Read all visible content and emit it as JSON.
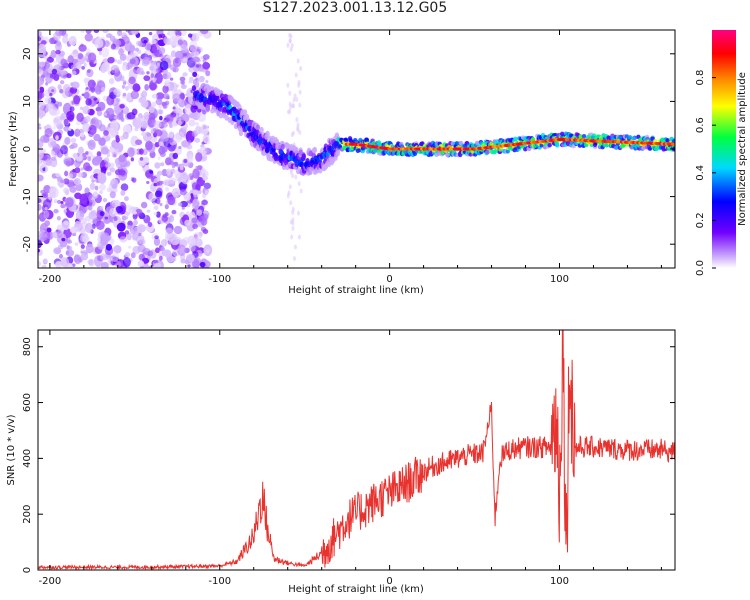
{
  "figure": {
    "title": "S127.2023.001.13.12.G05"
  },
  "chart_data": [
    {
      "type": "heatmap",
      "xlabel": "Height of straight line (km)",
      "ylabel": "Frequency (Hz)",
      "xlim": [
        -207,
        168
      ],
      "ylim": [
        -25,
        25
      ],
      "x_ticks": [
        -200,
        -100,
        0,
        100
      ],
      "y_ticks": [
        -20,
        -10,
        0,
        10,
        20
      ],
      "colorbar": {
        "label": "Normalized spectral amplitude",
        "range": [
          0,
          1
        ],
        "ticks": [
          0.0,
          0.2,
          0.4,
          0.6,
          0.8
        ],
        "colors": [
          "#ffffff",
          "#b070ff",
          "#7000ff",
          "#0000ff",
          "#00e0ff",
          "#00ff40",
          "#ffff00",
          "#ff8000",
          "#ff0000",
          "#ff0080"
        ]
      },
      "ridge": {
        "description_points": [
          {
            "x": -110,
            "y": 11
          },
          {
            "x": -95,
            "y": 9
          },
          {
            "x": -80,
            "y": 3
          },
          {
            "x": -65,
            "y": -1
          },
          {
            "x": -50,
            "y": -3
          },
          {
            "x": -40,
            "y": -2
          },
          {
            "x": -30,
            "y": 1
          },
          {
            "x": -20,
            "y": 1
          },
          {
            "x": 0,
            "y": 0
          },
          {
            "x": 50,
            "y": 0
          },
          {
            "x": 100,
            "y": 2
          },
          {
            "x": 168,
            "y": 1
          }
        ]
      }
    },
    {
      "type": "line",
      "xlabel": "Height of straight line (km)",
      "ylabel": "SNR (10 * v/v)",
      "xlim": [
        -207,
        168
      ],
      "ylim": [
        0,
        860
      ],
      "x_ticks": [
        -200,
        -100,
        0,
        100
      ],
      "y_ticks": [
        0,
        200,
        400,
        600,
        800
      ],
      "color": "#e8322e",
      "series": [
        {
          "x": [
            -207,
            -180,
            -150,
            -120,
            -100,
            -90,
            -80,
            -75,
            -72,
            -68,
            -60,
            -50,
            -40,
            -35,
            -25,
            -15,
            -5,
            5,
            15,
            25,
            35,
            45,
            55,
            60,
            62,
            65,
            70,
            80,
            90,
            95,
            98,
            100,
            102,
            104,
            106,
            108,
            110,
            120,
            140,
            160,
            168
          ],
          "y": [
            10,
            10,
            10,
            12,
            15,
            30,
            120,
            270,
            150,
            40,
            25,
            15,
            60,
            100,
            180,
            220,
            260,
            290,
            330,
            370,
            390,
            410,
            420,
            580,
            180,
            400,
            430,
            440,
            440,
            440,
            560,
            300,
            860,
            60,
            780,
            500,
            440,
            440,
            430,
            430,
            420
          ]
        }
      ]
    }
  ]
}
